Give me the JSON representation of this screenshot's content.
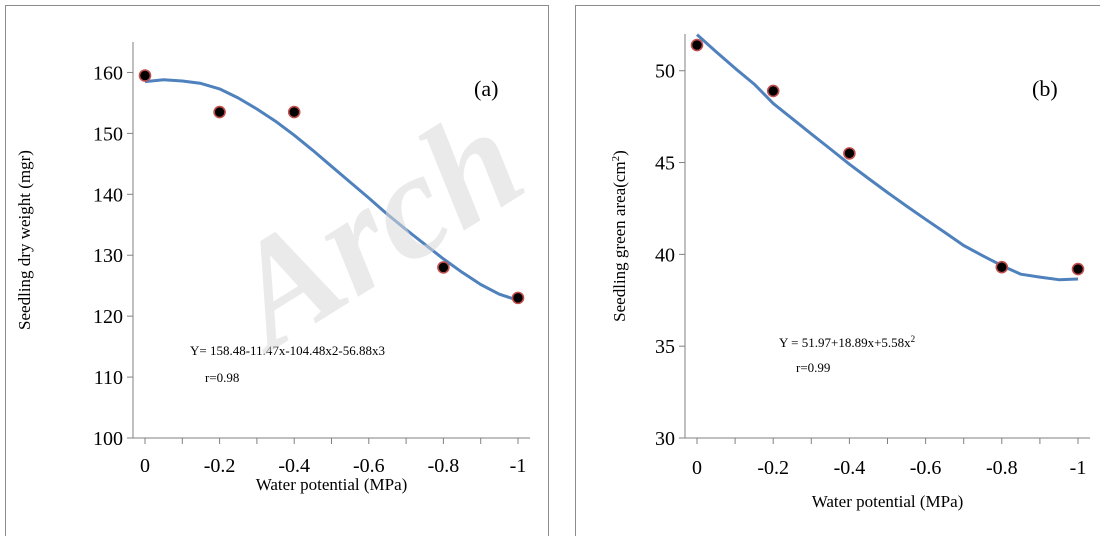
{
  "watermark": "Arch",
  "chart_data": [
    {
      "type": "scatter",
      "panel_label": "(a)",
      "xlabel": "Water potential (MPa)",
      "ylabel": "Seedling dry weight (mgr)",
      "xlim": [
        0,
        -1
      ],
      "ylim": [
        100,
        165
      ],
      "x_ticks": [
        0,
        -0.2,
        -0.4,
        -0.6,
        -0.8,
        -1
      ],
      "x_tick_labels": [
        "0",
        "-0.2",
        "-0.4",
        "-0.6",
        "-0.8",
        "-1"
      ],
      "y_ticks": [
        100,
        110,
        120,
        130,
        140,
        150,
        160
      ],
      "y_tick_labels": [
        "100",
        "110",
        "120",
        "130",
        "140",
        "150",
        "160"
      ],
      "x": [
        0,
        -0.2,
        -0.4,
        -0.8,
        -1
      ],
      "values": [
        159.5,
        153.5,
        153.5,
        128,
        123
      ],
      "fit": {
        "x": [
          0,
          -0.05,
          -0.1,
          -0.15,
          -0.2,
          -0.25,
          -0.3,
          -0.35,
          -0.4,
          -0.45,
          -0.5,
          -0.55,
          -0.6,
          -0.65,
          -0.7,
          -0.75,
          -0.8,
          -0.85,
          -0.9,
          -0.95,
          -1
        ],
        "y": [
          158.5,
          158.8,
          158.6,
          158.2,
          157.3,
          155.8,
          154.0,
          152.0,
          149.7,
          147.2,
          144.6,
          142.0,
          139.4,
          136.7,
          134.2,
          131.8,
          129.4,
          127.2,
          125.2,
          123.6,
          122.6
        ]
      },
      "equation": "Y= 158.48-11.47x-104.48x2-56.88x3",
      "r": "r=0.98",
      "marker_color": "#000000",
      "marker_edge_color": "#c0504d",
      "line_color": "#4f81bd"
    },
    {
      "type": "scatter",
      "panel_label": "(b)",
      "xlabel": "Water potential  (MPa)",
      "ylabel": "Seedling green area(cm",
      "ylabel_sup": "2",
      "ylabel_end": ")",
      "xlim": [
        0,
        -1
      ],
      "ylim": [
        30,
        52
      ],
      "x_ticks": [
        0,
        -0.2,
        -0.4,
        -0.6,
        -0.8,
        -1
      ],
      "x_tick_labels": [
        "0",
        "-0.2",
        "-0.4",
        "-0.6",
        "-0.8",
        "-1"
      ],
      "y_ticks": [
        30,
        35,
        40,
        45,
        50
      ],
      "y_tick_labels": [
        "30",
        "35",
        "40",
        "45",
        "50"
      ],
      "x": [
        0,
        -0.2,
        -0.4,
        -0.8,
        -1
      ],
      "values": [
        51.4,
        48.9,
        45.5,
        39.3,
        39.2
      ],
      "fit": {
        "x": [
          0,
          -0.05,
          -0.1,
          -0.15,
          -0.2,
          -0.25,
          -0.3,
          -0.35,
          -0.4,
          -0.45,
          -0.5,
          -0.55,
          -0.6,
          -0.65,
          -0.7,
          -0.75,
          -0.8,
          -0.85,
          -0.9,
          -0.95,
          -1
        ],
        "y": [
          51.97,
          51.03,
          50.13,
          49.27,
          48.22,
          47.39,
          46.56,
          45.74,
          44.91,
          44.13,
          43.37,
          42.63,
          41.91,
          41.2,
          40.48,
          39.92,
          39.39,
          38.92,
          38.76,
          38.62,
          38.66
        ]
      },
      "equation": "Y = 51.97+18.89x+5.58x",
      "equation_sup": "2",
      "r": "r=0.99",
      "marker_color": "#000000",
      "marker_edge_color": "#c0504d",
      "line_color": "#4f81bd"
    }
  ]
}
